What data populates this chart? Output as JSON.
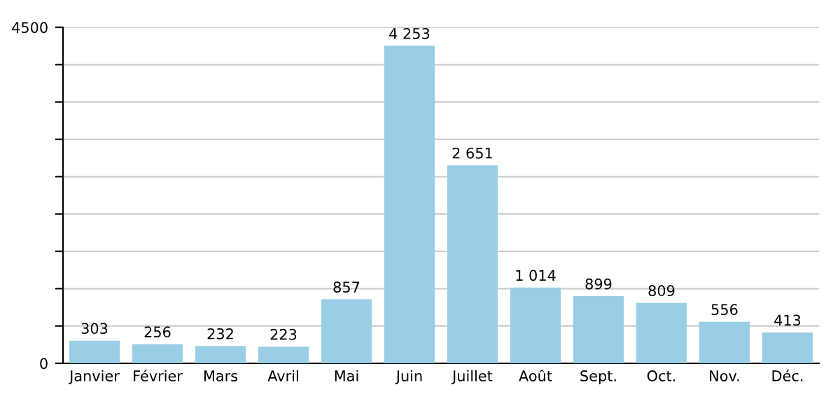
{
  "chart_data": {
    "type": "bar",
    "categories": [
      "Janvier",
      "Février",
      "Mars",
      "Avril",
      "Mai",
      "Juin",
      "Juillet",
      "Août",
      "Sept.",
      "Oct.",
      "Nov.",
      "Déc."
    ],
    "values": [
      303,
      256,
      232,
      223,
      857,
      4253,
      2651,
      1014,
      899,
      809,
      556,
      413
    ],
    "value_labels": [
      "303",
      "256",
      "232",
      "223",
      "857",
      "4 253",
      "2 651",
      "1 014",
      "899",
      "809",
      "556",
      "413"
    ],
    "color": "#9acde6",
    "ylim": [
      0,
      4500
    ],
    "yticks": [
      0,
      {
        "value": 500,
        "label": null
      },
      {
        "value": 1000,
        "label": null
      },
      {
        "value": 1500,
        "label": null
      },
      {
        "value": 2000,
        "label": null
      },
      {
        "value": 2500,
        "label": null
      },
      {
        "value": 3000,
        "label": null
      },
      {
        "value": 3500,
        "label": null
      },
      {
        "value": 4000,
        "label": null
      },
      4500
    ],
    "grid": "y"
  }
}
